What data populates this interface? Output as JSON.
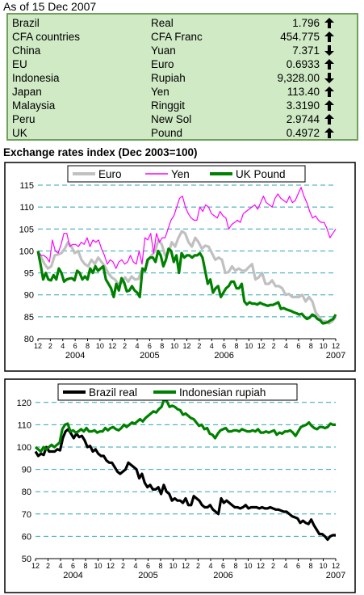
{
  "header": {
    "as_of": "As of 15 Dec 2007"
  },
  "rates_table": {
    "rows": [
      {
        "country": "Brazil",
        "currency": "Real",
        "rate": "1.796",
        "direction": "up-arrow-icon"
      },
      {
        "country": "CFA countries",
        "currency": "CFA Franc",
        "rate": "454.775",
        "direction": "up-arrow-icon"
      },
      {
        "country": "China",
        "currency": "Yuan",
        "rate": "7.371",
        "direction": "down-arrow-icon"
      },
      {
        "country": "EU",
        "currency": "Euro",
        "rate": "0.6933",
        "direction": "up-arrow-icon"
      },
      {
        "country": "Indonesia",
        "currency": "Rupiah",
        "rate": "9,328.00",
        "direction": "down-arrow-icon"
      },
      {
        "country": "Japan",
        "currency": "Yen",
        "rate": "113.40",
        "direction": "up-arrow-icon"
      },
      {
        "country": "Malaysia",
        "currency": "Ringgit",
        "rate": "3.3190",
        "direction": "up-arrow-icon"
      },
      {
        "country": "Peru",
        "currency": "New Sol",
        "rate": "2.9744",
        "direction": "up-arrow-icon"
      },
      {
        "country": "UK",
        "currency": "Pound",
        "rate": "0.4972",
        "direction": "up-arrow-icon"
      }
    ],
    "colors": {
      "background": "#cfeac4",
      "border": "#6fa05c"
    }
  },
  "chart_data": [
    {
      "type": "line",
      "title": "Exchange rates index (Dec 2003=100)",
      "x_tick_labels": [
        "12",
        "2",
        "4",
        "6",
        "8",
        "10",
        "12",
        "2",
        "4",
        "6",
        "8",
        "10",
        "12",
        "2",
        "4",
        "6",
        "8",
        "10",
        "12",
        "2",
        "4",
        "6",
        "8",
        "10",
        "12"
      ],
      "year_labels": [
        "2004",
        "2005",
        "2006",
        "2007"
      ],
      "ylim": [
        80,
        115
      ],
      "yticks": [
        80,
        85,
        90,
        95,
        100,
        105,
        110,
        115
      ],
      "grid": true,
      "legend_position": "top",
      "series": [
        {
          "name": "Euro",
          "color": "#c0c0c0",
          "values": [
            100,
            98.5,
            97,
            96,
            96.5,
            99,
            99.2,
            99.5,
            100.5,
            102,
            101,
            99.5,
            100,
            98,
            97,
            96.5,
            98,
            97,
            98.5,
            97.5,
            96.5,
            95,
            94,
            93.5,
            92.5,
            92.7,
            94,
            93,
            94.2,
            93.5,
            93.6,
            95.5,
            95.5,
            98,
            99,
            100,
            102.5,
            101.5,
            99,
            99.5,
            102,
            101,
            103,
            104.5,
            104,
            102,
            101,
            103,
            102,
            100.5,
            101.2,
            101,
            99.5,
            98,
            98.5,
            98,
            95,
            95.2,
            96.5,
            95.5,
            96,
            95.5,
            95.5,
            96.3,
            97,
            93.5,
            94,
            95,
            92.5,
            92.5,
            93.3,
            92,
            92,
            91.5,
            90,
            90.2,
            89.5,
            89.5,
            89.5,
            90,
            88.5,
            89.5,
            88.5,
            86,
            85,
            84,
            84,
            83.5,
            84,
            85
          ]
        },
        {
          "name": "Yen",
          "color": "#ff00ff",
          "values": [
            100,
            99,
            99,
            98.5,
            97.5,
            102.5,
            100,
            99.5,
            101.5,
            104,
            104,
            101,
            101.5,
            101.5,
            101,
            102,
            101.5,
            103,
            101,
            102.5,
            102,
            102.5,
            100.5,
            99,
            97,
            98,
            97.5,
            96,
            97.5,
            98,
            97,
            97.5,
            99,
            97.5,
            97,
            100,
            97,
            103,
            102.5,
            104,
            99.5,
            104,
            102,
            103,
            103,
            105,
            107,
            108,
            110,
            112,
            112.5,
            110,
            108.5,
            107.5,
            107,
            107,
            110,
            109,
            110.5,
            110,
            108.5,
            108,
            107.5,
            109,
            108,
            107.5,
            105,
            106,
            106.5,
            107,
            106.5,
            108.5,
            109,
            109.5,
            110,
            110.5,
            109.5,
            111,
            112.5,
            111,
            110.5,
            110,
            112,
            113,
            112,
            111.5,
            111,
            112.5,
            111,
            111.5,
            113,
            114.5,
            112.5,
            111,
            109,
            107.5,
            108,
            107,
            106.5,
            106.5,
            105,
            103,
            104,
            105
          ]
        },
        {
          "name": "UK Pound",
          "color": "#008000",
          "values": [
            100,
            97,
            93.5,
            95,
            93.5,
            93.3,
            94.5,
            93.5,
            96,
            95,
            93,
            93.5,
            93.7,
            93.8,
            93.3,
            95.5,
            95,
            93.5,
            94.2,
            93.5,
            96,
            95,
            96.5,
            95.5,
            96,
            96.5,
            93.5,
            92.5,
            91.5,
            89.5,
            92.5,
            91,
            93.8,
            92.8,
            90.8,
            91,
            92,
            91,
            90.5,
            89.5,
            96,
            95.5,
            98,
            98.5,
            98.5,
            97.5,
            100,
            99,
            96.5,
            98,
            100.5,
            100,
            97.5,
            99,
            95,
            99.5,
            98.5,
            99,
            99,
            98.5,
            99,
            99,
            99.5,
            98.5,
            95.5,
            92.5,
            93.5,
            90.5,
            91.5,
            92,
            89.5,
            90.5,
            91.5,
            92,
            93,
            93,
            91.5,
            91.5,
            92.5,
            88.5,
            87.8,
            88.3,
            88,
            88,
            87.8,
            88.2,
            87.9,
            87.7,
            87.5,
            87.7,
            87.7,
            88,
            88.3,
            86.8,
            87,
            86.7,
            86.5,
            86.3,
            86,
            85.8,
            85.5,
            85.7,
            85,
            84.5,
            84.8,
            85.5,
            85.2,
            84.5,
            84.2,
            83.5,
            83.6,
            83.8,
            84.2,
            84.5,
            85.5
          ]
        }
      ]
    },
    {
      "type": "line",
      "x_tick_labels": [
        "12",
        "2",
        "4",
        "6",
        "8",
        "10",
        "12",
        "2",
        "4",
        "6",
        "8",
        "10",
        "12",
        "2",
        "4",
        "6",
        "8",
        "10",
        "12",
        "2",
        "4",
        "6",
        "8",
        "10",
        "12"
      ],
      "year_labels": [
        "2004",
        "2005",
        "2006",
        "2007"
      ],
      "ylim": [
        50,
        125
      ],
      "yticks": [
        50,
        60,
        70,
        80,
        90,
        100,
        110,
        120
      ],
      "grid": true,
      "legend_position": "top",
      "series": [
        {
          "name": "Brazil real",
          "color": "#000000",
          "values": [
            98,
            96,
            97,
            96.5,
            100,
            98,
            98,
            98,
            99,
            98.5,
            104,
            107,
            108,
            106,
            104,
            106,
            104.5,
            105,
            103,
            100,
            100.5,
            98,
            99,
            97,
            96,
            96,
            94,
            93,
            93,
            91,
            89,
            88,
            89,
            90,
            93,
            92,
            91,
            90,
            86,
            88,
            84,
            82,
            83,
            81,
            81,
            82,
            79,
            83,
            80,
            79,
            76,
            77,
            76,
            76,
            75,
            77,
            74,
            74,
            78,
            77,
            76,
            74,
            73,
            73,
            74,
            72,
            71,
            70,
            77,
            75,
            76,
            75,
            74,
            73,
            73,
            72.5,
            73,
            74,
            72.5,
            73,
            73,
            73,
            72.5,
            73,
            72.5,
            72.5,
            73,
            72.5,
            72,
            72,
            71.5,
            71,
            71,
            70,
            69,
            68.5,
            68,
            66,
            67,
            66,
            65.5,
            67.5,
            65,
            63,
            61,
            61,
            60,
            58.5,
            60,
            60.5,
            60.5
          ]
        },
        {
          "name": "Indonesian rupiah",
          "color": "#008000",
          "values": [
            100,
            99,
            98,
            100,
            99,
            100,
            101,
            100,
            101,
            102,
            108,
            110,
            110.5,
            107,
            107.5,
            106.5,
            107,
            108,
            107,
            108.5,
            107,
            107,
            107.5,
            106.5,
            107,
            107,
            108.5,
            107.5,
            108.5,
            109,
            108,
            107.5,
            108.5,
            110,
            109,
            110,
            111,
            110.5,
            111.5,
            112.5,
            111.5,
            113,
            114,
            115,
            116,
            115.5,
            117,
            118,
            121.5,
            120.5,
            118,
            118.5,
            118,
            117,
            116.5,
            114.5,
            115,
            114,
            113,
            112.5,
            111,
            109.5,
            110,
            108,
            108.5,
            106,
            105.5,
            104,
            106,
            107.5,
            108,
            108.5,
            107,
            107,
            107.5,
            107.5,
            107,
            108,
            107.5,
            107,
            107,
            107.5,
            107,
            108,
            106.5,
            106.5,
            107,
            106.5,
            107,
            107.5,
            105.5,
            106.5,
            106,
            107,
            107,
            107.5,
            106.5,
            105,
            107,
            109,
            109.5,
            110,
            111,
            109.5,
            108.5,
            108,
            109,
            109,
            108.5,
            109,
            110.5,
            110,
            110
          ]
        }
      ]
    }
  ]
}
